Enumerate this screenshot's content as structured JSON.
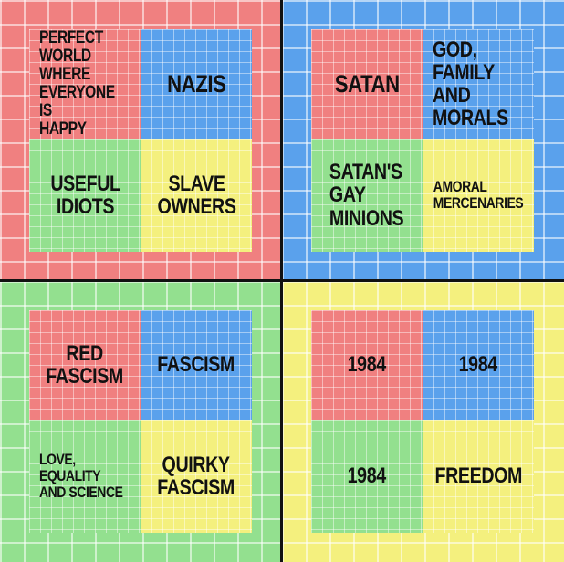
{
  "quadrants": {
    "top_left": {
      "cells": [
        "PERFECT\nWORLD WHERE\nEVERYONE IS\nHAPPY",
        "NAZIS",
        "USEFUL\nIDIOTS",
        "SLAVE\nOWNERS"
      ]
    },
    "top_right": {
      "cells": [
        "SATAN",
        "GOD,\nFAMILY AND\nMORALS",
        "SATAN'S\nGAY\nMINIONS",
        "AMORAL\nMERCENARIES"
      ]
    },
    "bottom_left": {
      "cells": [
        "RED\nFASCISM",
        "FASCISM",
        "LOVE, EQUALITY\nAND SCIENCE",
        "QUIRKY\nFASCISM"
      ]
    },
    "bottom_right": {
      "cells": [
        "1984",
        "1984",
        "1984",
        "FREEDOM"
      ]
    }
  },
  "colors": {
    "red": "#f08080",
    "blue": "#5aa1ec",
    "green": "#93e08f",
    "yellow": "#f4f07e",
    "divider": "#111111"
  }
}
